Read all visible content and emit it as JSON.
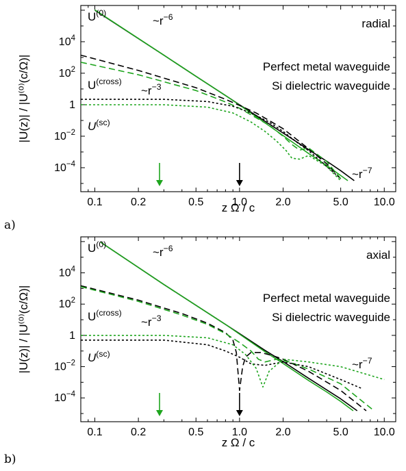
{
  "figure": {
    "colors": {
      "metal": "#000000",
      "dielectric": "#1ea51e"
    },
    "styles": {
      "U0": "solid",
      "Ucross": "dashed",
      "Usc": "dotted"
    }
  },
  "chart_data": [
    {
      "type": "line",
      "panel_label": "a)",
      "corner_label": "radial",
      "xlabel": "z Ω / c",
      "ylabel": "|U(z)| / |U⁽⁰⁾(c/Ω)|",
      "xscale": "log",
      "yscale": "log",
      "xlim": [
        0.08,
        12
      ],
      "ylim": [
        3e-06,
        2000000
      ],
      "xticks": [
        0.1,
        0.2,
        0.5,
        1.0,
        2.0,
        5.0,
        10.0
      ],
      "xtick_labels": [
        "0.1",
        "0.2",
        "0.5",
        "1.0",
        "2.0",
        "5.0",
        "10.0"
      ],
      "yticks": [
        0.0001,
        0.01,
        1,
        100,
        10000
      ],
      "ytick_labels": [
        {
          "base": "10",
          "exp": "−4"
        },
        {
          "base": "10",
          "exp": "−2"
        },
        {
          "base": "1",
          "exp": ""
        },
        {
          "base": "10",
          "exp": "2"
        },
        {
          "base": "10",
          "exp": "4"
        }
      ],
      "legend": [
        "Perfect metal waveguide",
        "Si dielectric waveguide"
      ],
      "annotations": {
        "U0": {
          "base": "U",
          "sup": "(0)"
        },
        "Ucross": {
          "base": "U",
          "sup": "(cross)"
        },
        "Usc": {
          "base": "U",
          "sup": "(sc)"
        },
        "r6": {
          "base": "~r",
          "sup": "−6"
        },
        "r3": {
          "base": "~r",
          "sup": "−3"
        },
        "r7": {
          "base": "~r",
          "sup": "−7"
        }
      },
      "arrows": [
        {
          "series": "dielectric",
          "x": 0.28
        },
        {
          "series": "metal",
          "x": 1.0
        }
      ],
      "series": [
        {
          "group": "U0",
          "medium": "metal",
          "x": [
            0.1,
            0.3,
            0.5,
            0.8,
            1.0,
            1.5,
            2.0,
            3.0,
            4.0,
            5.0,
            6.2
          ],
          "y": [
            1000000,
            1400,
            64,
            3.8,
            1,
            0.088,
            0.016,
            0.0014,
            0.00026,
            6.5e-05,
            1.5e-05
          ]
        },
        {
          "group": "U0",
          "medium": "dielectric",
          "x": [
            0.1,
            0.3,
            0.5,
            0.8,
            1.0,
            1.5,
            2.0,
            3.0,
            4.0,
            5.0,
            5.6
          ],
          "y": [
            1050000,
            1400,
            64,
            3.8,
            0.95,
            0.07,
            0.011,
            0.0008,
            0.00014,
            3.2e-05,
            1.5e-05
          ]
        },
        {
          "group": "Ucross",
          "medium": "metal",
          "x": [
            0.08,
            0.2,
            0.5,
            0.8,
            1.0,
            1.3,
            1.6,
            2.0,
            2.5,
            3.0,
            4.0,
            5.0
          ],
          "y": [
            1400,
            150,
            12,
            2.2,
            0.9,
            0.3,
            0.1,
            0.03,
            0.006,
            0.0016,
            0.00018,
            2e-05
          ]
        },
        {
          "group": "Ucross",
          "medium": "dielectric",
          "x": [
            0.08,
            0.2,
            0.5,
            0.8,
            1.0,
            1.3,
            1.6,
            2.0,
            2.3,
            2.6,
            3.0,
            4.0,
            5.0
          ],
          "y": [
            500,
            80,
            8,
            1.5,
            0.6,
            0.15,
            0.05,
            0.01,
            0.003,
            0.0013,
            0.0018,
            0.00025,
            2e-05
          ]
        },
        {
          "group": "Usc",
          "medium": "metal",
          "x": [
            0.08,
            0.3,
            0.6,
            0.9,
            1.2,
            1.6,
            2.0,
            2.5,
            3.0,
            4.0,
            5.0
          ],
          "y": [
            2.2,
            2.2,
            1.6,
            0.8,
            0.3,
            0.08,
            0.02,
            0.004,
            0.0012,
            0.00012,
            2e-05
          ]
        },
        {
          "group": "Usc",
          "medium": "dielectric",
          "x": [
            0.08,
            0.3,
            0.6,
            0.9,
            1.2,
            1.5,
            1.8,
            2.1,
            2.3,
            2.6,
            3.0,
            4.0,
            5.0
          ],
          "y": [
            1,
            1,
            0.7,
            0.3,
            0.08,
            0.02,
            0.005,
            0.0012,
            0.0004,
            0.00035,
            0.0006,
            0.00012,
            1.5e-05
          ]
        }
      ]
    },
    {
      "type": "line",
      "panel_label": "b)",
      "corner_label": "axial",
      "xlabel": "z Ω / c",
      "ylabel": "|U(z)| / |U⁽⁰⁾(c/Ω)|",
      "xscale": "log",
      "yscale": "log",
      "xlim": [
        0.08,
        12
      ],
      "ylim": [
        3e-06,
        2000000
      ],
      "xticks": [
        0.1,
        0.2,
        0.5,
        1.0,
        2.0,
        5.0,
        10.0
      ],
      "xtick_labels": [
        "0.1",
        "0.2",
        "0.5",
        "1.0",
        "2.0",
        "5.0",
        "10.0"
      ],
      "yticks": [
        0.0001,
        0.01,
        1,
        100,
        10000
      ],
      "ytick_labels": [
        {
          "base": "10",
          "exp": "−4"
        },
        {
          "base": "10",
          "exp": "−2"
        },
        {
          "base": "1",
          "exp": ""
        },
        {
          "base": "10",
          "exp": "2"
        },
        {
          "base": "10",
          "exp": "4"
        }
      ],
      "legend": [
        "Perfect metal waveguide",
        "Si dielectric waveguide"
      ],
      "annotations": {
        "U0": {
          "base": "U",
          "sup": "(0)"
        },
        "Ucross": {
          "base": "U",
          "sup": "(cross)"
        },
        "Usc": {
          "base": "U",
          "sup": "(sc)"
        },
        "r6": {
          "base": "~r",
          "sup": "−6"
        },
        "r3": {
          "base": "~r",
          "sup": "−3"
        },
        "r7": {
          "base": "~r",
          "sup": "−7"
        }
      },
      "arrows": [
        {
          "series": "dielectric",
          "x": 0.28
        },
        {
          "series": "metal",
          "x": 1.0
        }
      ],
      "series": [
        {
          "group": "U0",
          "medium": "metal",
          "x": [
            0.11,
            0.3,
            0.5,
            0.8,
            1.0,
            1.5,
            2.0,
            3.0,
            4.0,
            5.0,
            6.5
          ],
          "y": [
            900000,
            1800,
            84,
            5,
            1.3,
            0.11,
            0.021,
            0.0018,
            0.00033,
            8.7e-05,
            1.5e-05
          ]
        },
        {
          "group": "U0",
          "medium": "dielectric",
          "x": [
            0.11,
            0.3,
            0.5,
            0.8,
            1.0,
            1.5,
            2.0,
            3.0,
            4.0,
            5.0,
            6.1
          ],
          "y": [
            900000,
            1800,
            84,
            5,
            1.2,
            0.09,
            0.016,
            0.0013,
            0.00024,
            6e-05,
            1.5e-05
          ]
        },
        {
          "group": "Ucross",
          "medium": "metal",
          "x": [
            0.08,
            0.2,
            0.4,
            0.6,
            0.8,
            0.9,
            0.95,
            1.0,
            1.05,
            1.1,
            1.2,
            1.4,
            1.7,
            2.0,
            3.0,
            5.0,
            7.5
          ],
          "y": [
            1500,
            180,
            25,
            6,
            1.5,
            0.5,
            0.08,
            0.0003,
            0.01,
            0.04,
            0.08,
            0.08,
            0.05,
            0.03,
            0.005,
            0.0003,
            1.5e-05
          ]
        },
        {
          "group": "Ucross",
          "medium": "dielectric",
          "x": [
            0.08,
            0.2,
            0.4,
            0.6,
            0.8,
            1.0,
            1.2,
            1.35,
            1.5,
            1.8,
            2.2,
            3.0,
            5.0,
            8.5
          ],
          "y": [
            1300,
            150,
            20,
            5,
            1.3,
            0.35,
            0.1,
            0.03,
            0.02,
            0.03,
            0.02,
            0.007,
            0.0008,
            1.5e-05
          ]
        },
        {
          "group": "Usc",
          "medium": "metal",
          "x": [
            0.08,
            0.3,
            0.6,
            0.8,
            1.0,
            1.2,
            1.5,
            2.0,
            3.0,
            5.0,
            7.0
          ],
          "y": [
            0.5,
            0.5,
            0.25,
            0.1,
            0.04,
            0.015,
            0.012,
            0.02,
            0.01,
            0.0015,
            0.0004
          ]
        },
        {
          "group": "Usc",
          "medium": "dielectric",
          "x": [
            0.08,
            0.3,
            0.6,
            0.9,
            1.1,
            1.3,
            1.45,
            1.6,
            2.0,
            3.0,
            5.0,
            10.0
          ],
          "y": [
            1.0,
            1.0,
            0.7,
            0.25,
            0.06,
            0.008,
            0.0005,
            0.005,
            0.03,
            0.02,
            0.01,
            0.0015
          ]
        }
      ]
    }
  ]
}
